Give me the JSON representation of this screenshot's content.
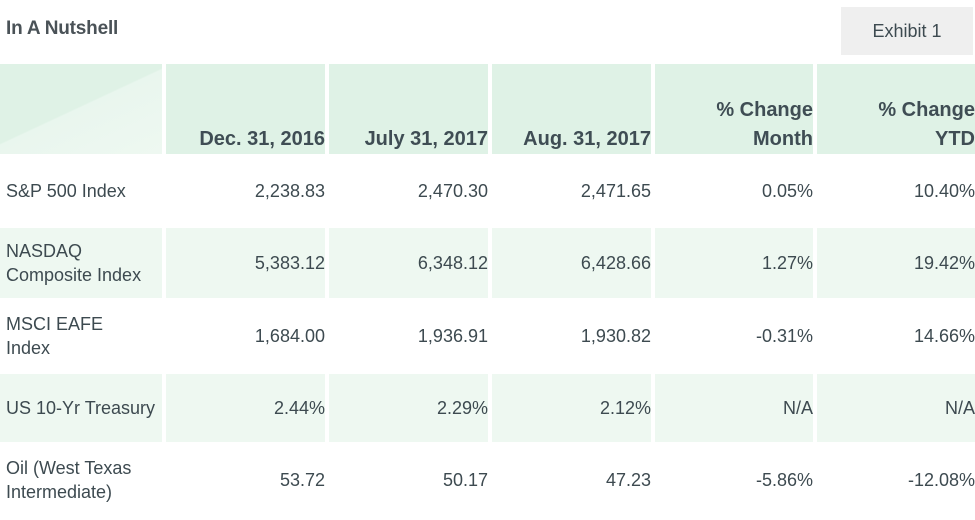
{
  "header": {
    "title": "In A Nutshell",
    "exhibit_label": "Exhibit 1"
  },
  "table": {
    "columns": [
      "",
      "Dec. 31, 2016",
      "July 31, 2017",
      "Aug. 31, 2017",
      "% Change Month",
      "% Change YTD"
    ],
    "column_lines": [
      [
        ""
      ],
      [
        "Dec. 31, 2016"
      ],
      [
        "July 31, 2017"
      ],
      [
        "Aug. 31, 2017"
      ],
      [
        "% Change",
        "Month"
      ],
      [
        "% Change",
        "YTD"
      ]
    ],
    "rows": [
      {
        "label_lines": [
          "S&P 500 Index"
        ],
        "cells": [
          "2,238.83",
          "2,470.30",
          "2,471.65",
          "0.05%",
          "10.40%"
        ]
      },
      {
        "label_lines": [
          "NASDAQ",
          "Composite Index"
        ],
        "cells": [
          "5,383.12",
          "6,348.12",
          "6,428.66",
          "1.27%",
          "19.42%"
        ]
      },
      {
        "label_lines": [
          "MSCI EAFE",
          "Index"
        ],
        "cells": [
          "1,684.00",
          "1,936.91",
          "1,930.82",
          "-0.31%",
          "14.66%"
        ]
      },
      {
        "label_lines": [
          "US 10-Yr Treasury"
        ],
        "cells": [
          "2.44%",
          "2.29%",
          "2.12%",
          "N/A",
          "N/A"
        ]
      },
      {
        "label_lines": [
          "Oil (West Texas",
          "Intermediate)"
        ],
        "cells": [
          "53.72",
          "50.17",
          "47.23",
          "-5.86%",
          "-12.08%"
        ]
      }
    ]
  },
  "colors": {
    "header_bg": "#dff2e6",
    "row_shade": "#eef8f1",
    "exhibit_bg": "#efefef",
    "text": "#3d4a50"
  }
}
